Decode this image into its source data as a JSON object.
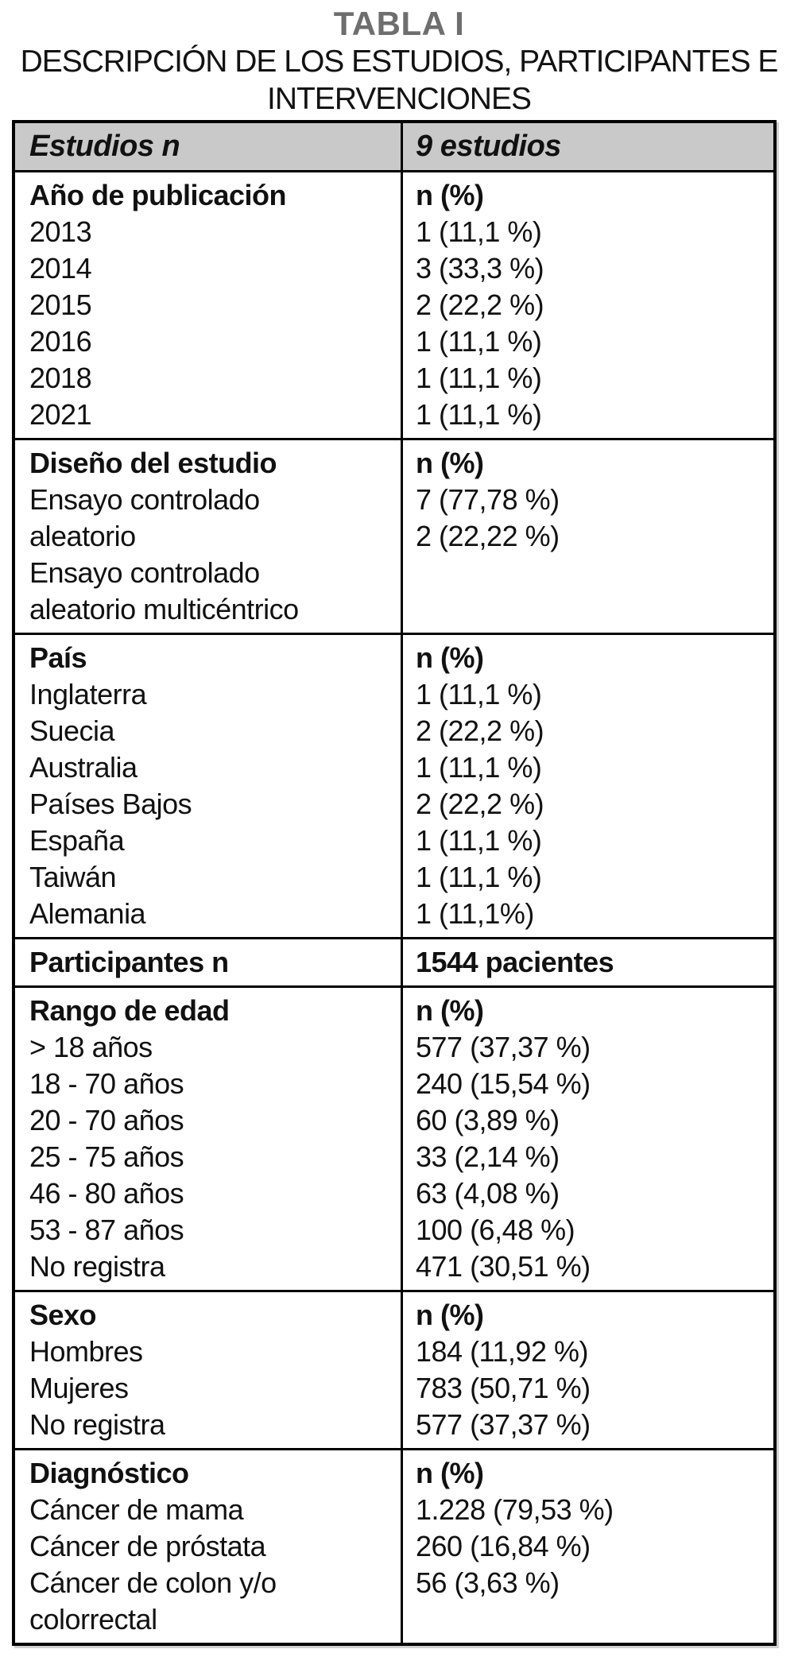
{
  "title": "TABLA I",
  "subtitle_lines": [
    "DESCRIPCIÓN DE LOS ESTUDIOS, PARTICIPANTES E",
    "INTERVENCIONES"
  ],
  "colors": {
    "title_gray": "#6e6e6e",
    "header_background": "#c9c9c9",
    "border": "#000000",
    "text": "#111111"
  },
  "table": {
    "header": {
      "left": "Estudios n",
      "right": "9 estudios"
    },
    "sections": [
      {
        "header_left": "Año de publicación",
        "header_right": "n (%)",
        "left_lines": [
          "2013",
          "2014",
          "2015",
          "2016",
          "2018",
          "2021"
        ],
        "right_lines": [
          "1 (11,1 %)",
          "3 (33,3 %)",
          "2 (22,2 %)",
          "1 (11,1 %)",
          "1 (11,1 %)",
          "1 (11,1 %)"
        ]
      },
      {
        "header_left": "Diseño del estudio",
        "header_right": "n (%)",
        "left_lines": [
          "Ensayo controlado",
          "aleatorio",
          "Ensayo controlado",
          "aleatorio multicéntrico"
        ],
        "right_lines": [
          "7 (77,78 %)",
          "2 (22,22 %)"
        ]
      },
      {
        "header_left": "País",
        "header_right": "n (%)",
        "left_lines": [
          "Inglaterra",
          "Suecia",
          "Australia",
          "Países Bajos",
          "España",
          "Taiwán",
          "Alemania"
        ],
        "right_lines": [
          "1 (11,1 %)",
          "2 (22,2 %)",
          "1 (11,1 %)",
          "2 (22,2 %)",
          "1 (11,1 %)",
          "1 (11,1 %)",
          "1 (11,1%)"
        ]
      },
      {
        "header_left": "Participantes n",
        "header_right": "1544 pacientes",
        "left_lines": [],
        "right_lines": []
      },
      {
        "header_left": "Rango de edad",
        "header_right": "n (%)",
        "left_lines": [
          "> 18 años",
          "18 - 70 años",
          "20 - 70 años",
          "25 - 75 años",
          "46 - 80 años",
          "53 - 87 años",
          "No registra"
        ],
        "right_lines": [
          "577 (37,37 %)",
          "240 (15,54 %)",
          "60 (3,89 %)",
          "33 (2,14 %)",
          "63 (4,08 %)",
          "100 (6,48 %)",
          "471 (30,51 %)"
        ]
      },
      {
        "header_left": "Sexo",
        "header_right": "n (%)",
        "left_lines": [
          "Hombres",
          "Mujeres",
          "No registra"
        ],
        "right_lines": [
          "184 (11,92 %)",
          "783 (50,71 %)",
          "577 (37,37 %)"
        ]
      },
      {
        "header_left": "Diagnóstico",
        "header_right": "n (%)",
        "left_lines": [
          "Cáncer de mama",
          "Cáncer de próstata",
          "Cáncer de colon y/o",
          "colorrectal"
        ],
        "right_lines": [
          "1.228 (79,53 %)",
          "260 (16,84 %)",
          "56 (3,63 %)"
        ]
      }
    ]
  }
}
